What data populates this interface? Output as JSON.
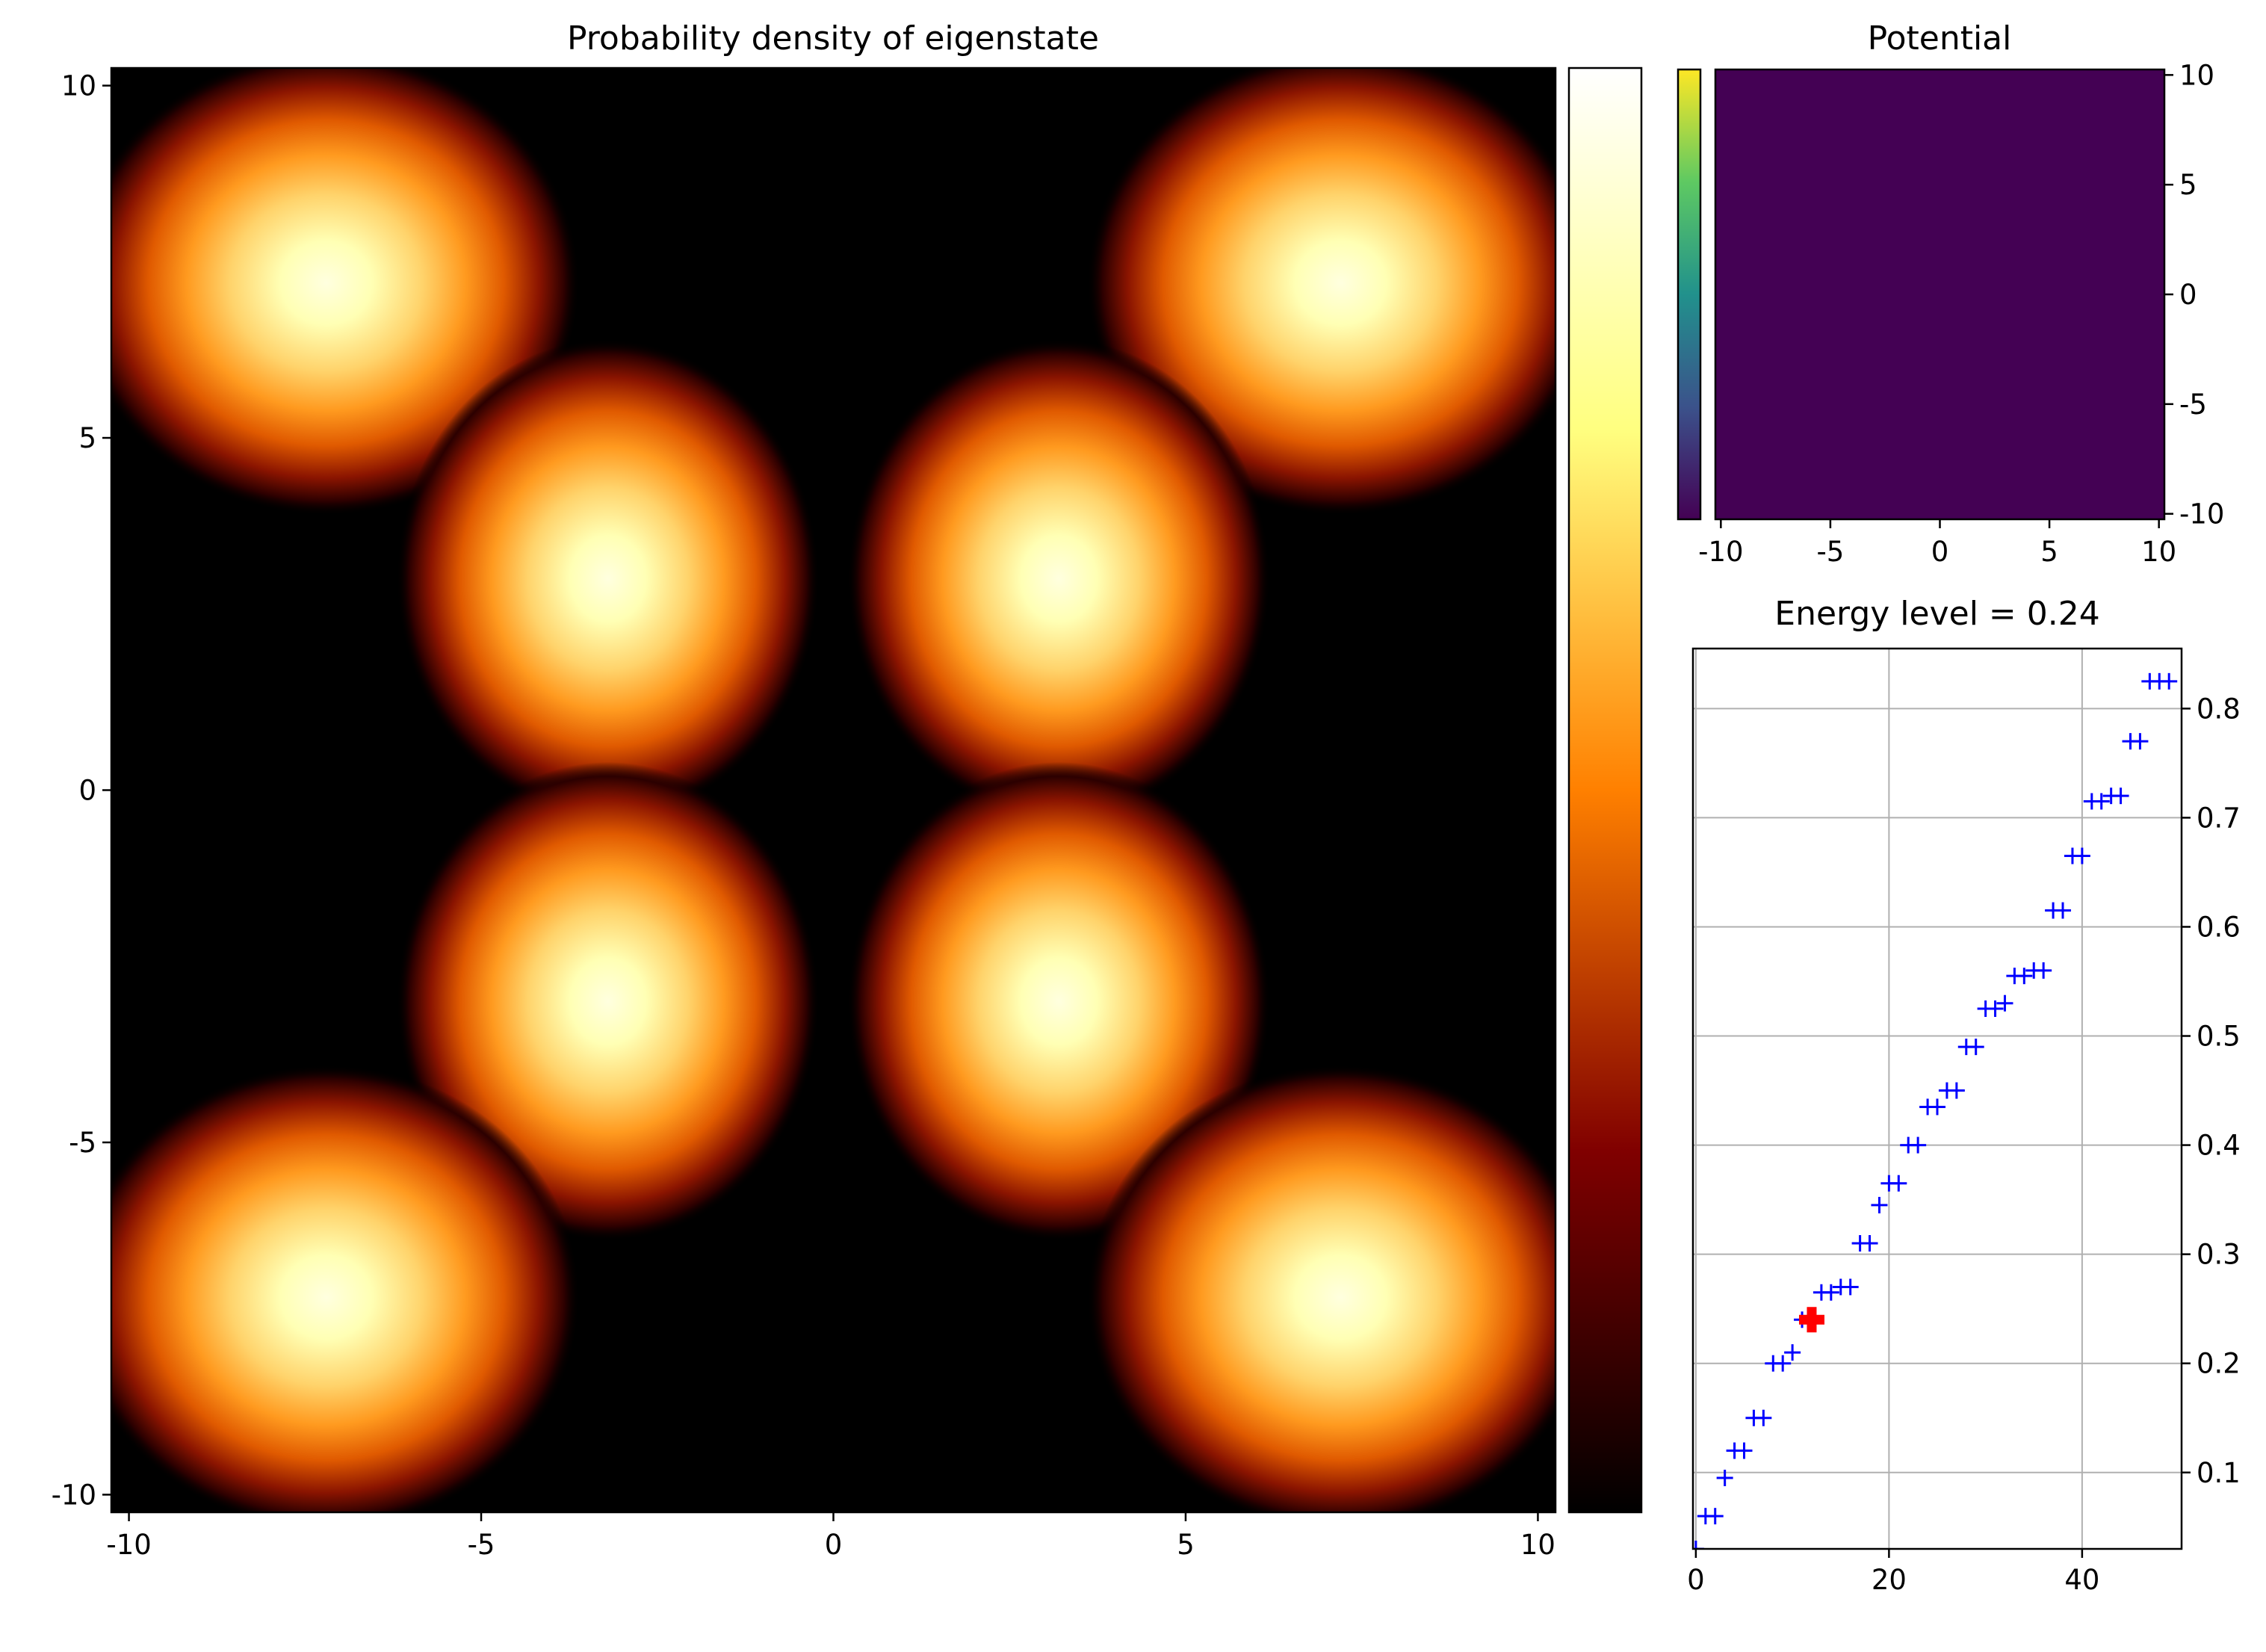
{
  "chart_data": [
    {
      "type": "heatmap",
      "title": "Probability density of eigenstate",
      "xlabel": "",
      "ylabel": "",
      "xlim": [
        -10.25,
        10.25
      ],
      "ylim": [
        -10.25,
        10.25
      ],
      "x_ticks": [
        -10,
        -5,
        0,
        5,
        10
      ],
      "y_ticks": [
        -10,
        -5,
        0,
        5,
        10
      ],
      "x_tick_labels": [
        "-10",
        "-5",
        "0",
        "5",
        "10"
      ],
      "y_tick_labels": [
        "10",
        "5",
        "0",
        "-5",
        "-10"
      ],
      "colormap": "afmhot",
      "colorbar": true,
      "colorbar_ticks": [],
      "grid": false,
      "lobes": [
        {
          "x": -7.2,
          "y": 7.2
        },
        {
          "x": 7.2,
          "y": 7.2
        },
        {
          "x": -3.2,
          "y": 3.0
        },
        {
          "x": 3.2,
          "y": 3.0
        },
        {
          "x": -3.2,
          "y": -3.0
        },
        {
          "x": 3.2,
          "y": -3.0
        },
        {
          "x": -7.2,
          "y": -7.2
        },
        {
          "x": 7.2,
          "y": -7.2
        }
      ]
    },
    {
      "type": "heatmap",
      "title": "Potential",
      "xlabel": "",
      "ylabel": "",
      "xlim": [
        -10.25,
        10.25
      ],
      "ylim": [
        -10.25,
        10.25
      ],
      "x_ticks": [
        -10,
        -5,
        0,
        5,
        10
      ],
      "y_ticks": [
        -10,
        -5,
        0,
        5,
        10
      ],
      "x_tick_labels": [
        "-10",
        "-5",
        "0",
        "5",
        "10"
      ],
      "y_tick_labels": [
        "10",
        "5",
        "0",
        "-5",
        "-10"
      ],
      "colormap": "viridis",
      "colorbar": true,
      "colorbar_position": "left",
      "fill_color": "#440154",
      "grid": false
    },
    {
      "type": "scatter",
      "title": "Energy level = 0.24",
      "xlabel": "",
      "ylabel": "",
      "xlim": [
        -0.3,
        50.3
      ],
      "ylim": [
        0.03,
        0.855
      ],
      "x_ticks": [
        0,
        20,
        40
      ],
      "x_tick_labels": [
        "0",
        "20",
        "40"
      ],
      "y_ticks": [
        0.1,
        0.2,
        0.3,
        0.4,
        0.5,
        0.6,
        0.7,
        0.8
      ],
      "y_tick_labels": [
        "0.1",
        "0.2",
        "0.3",
        "0.4",
        "0.5",
        "0.6",
        "0.7",
        "0.8"
      ],
      "y_axis_side": "right",
      "grid": true,
      "marker": "+",
      "series": [
        {
          "color": "#0000ff",
          "x": [
            0,
            1,
            2,
            3,
            4,
            5,
            6,
            7,
            8,
            9,
            10,
            11,
            12,
            13,
            14,
            15,
            16,
            17,
            18,
            19,
            20,
            21,
            22,
            23,
            24,
            25,
            26,
            27,
            28,
            29,
            30,
            31,
            32,
            33,
            34,
            35,
            36,
            37,
            38,
            39,
            40,
            41,
            42,
            43,
            44,
            45,
            46,
            47,
            48,
            49
          ],
          "y": [
            0.03,
            0.06,
            0.06,
            0.095,
            0.12,
            0.12,
            0.15,
            0.15,
            0.2,
            0.2,
            0.21,
            0.24,
            0.24,
            0.265,
            0.265,
            0.27,
            0.27,
            0.31,
            0.31,
            0.345,
            0.365,
            0.365,
            0.4,
            0.4,
            0.435,
            0.435,
            0.45,
            0.45,
            0.49,
            0.49,
            0.525,
            0.525,
            0.53,
            0.555,
            0.555,
            0.56,
            0.56,
            0.615,
            0.615,
            0.665,
            0.665,
            0.715,
            0.715,
            0.72,
            0.72,
            0.77,
            0.77,
            0.825,
            0.825,
            0.825
          ]
        },
        {
          "color": "#ff0000",
          "highlight": true,
          "x": [
            12
          ],
          "y": [
            0.24
          ]
        }
      ]
    }
  ]
}
